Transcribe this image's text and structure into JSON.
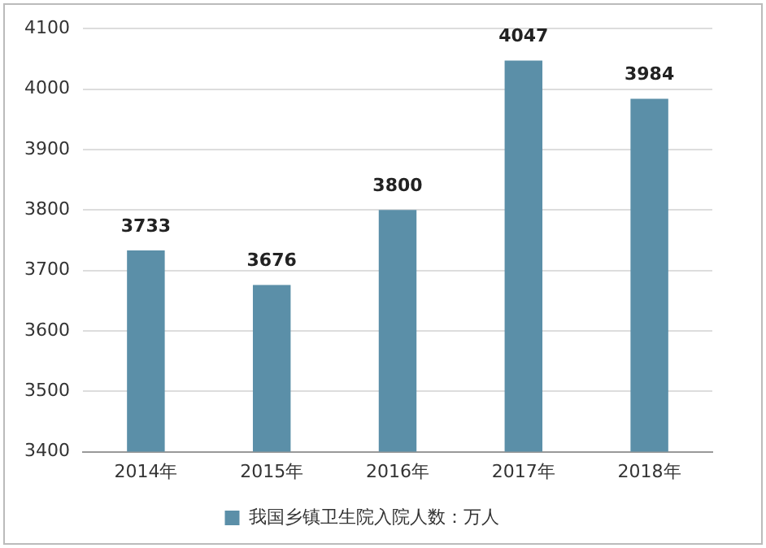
{
  "chart_data": {
    "type": "bar",
    "categories": [
      "2014年",
      "2015年",
      "2016年",
      "2017年",
      "2018年"
    ],
    "series": [
      {
        "name": "我国乡镇卫生院入院人数：万人",
        "color": "#5b8fa8",
        "values": [
          3733,
          3676,
          3800,
          4047,
          3984
        ]
      }
    ],
    "ylim": [
      3400,
      4100
    ],
    "yticks": [
      3400,
      3500,
      3600,
      3700,
      3800,
      3900,
      4000,
      4100
    ],
    "grid": "y",
    "legend": "bottom",
    "data_labels": true
  }
}
